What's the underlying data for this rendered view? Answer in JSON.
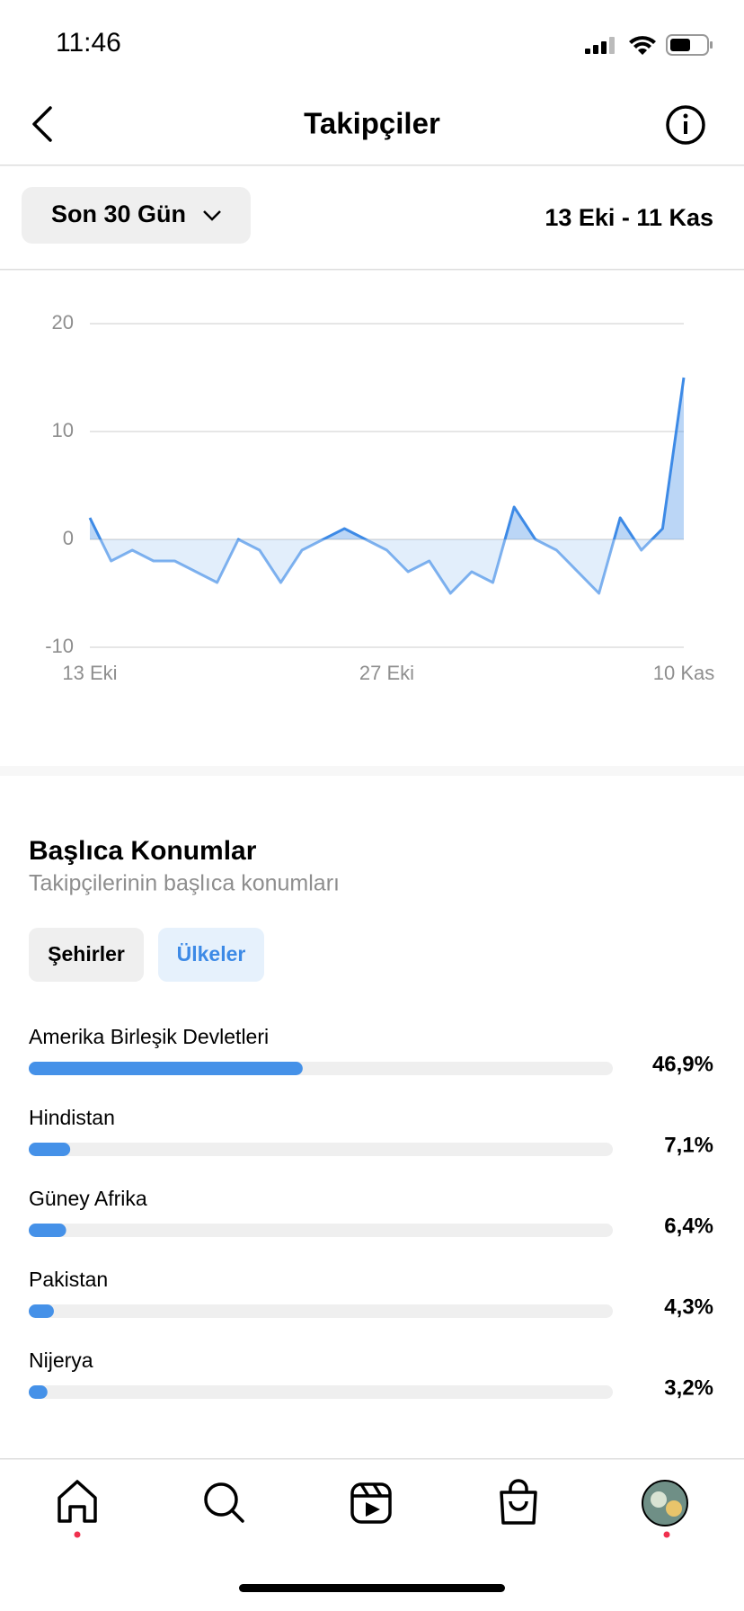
{
  "status_bar": {
    "time": "11:46"
  },
  "header": {
    "title": "Takipçiler"
  },
  "filter": {
    "period": "Son 30 Gün",
    "date_range": "13 Eki - 11 Kas"
  },
  "locations": {
    "title": "Başlıca Konumlar",
    "subtitle": "Takipçilerinin başlıca konumları",
    "tabs": [
      "Şehirler",
      "Ülkeler"
    ]
  },
  "chart_data": [
    {
      "type": "line",
      "categories": [
        "13 Eki",
        null,
        null,
        null,
        null,
        null,
        null,
        null,
        null,
        null,
        null,
        null,
        null,
        null,
        "27 Eki",
        null,
        null,
        null,
        null,
        null,
        null,
        null,
        null,
        null,
        null,
        null,
        null,
        null,
        "10 Kas"
      ],
      "values": [
        2,
        -2,
        -1,
        -2,
        -2,
        -3,
        -4,
        0,
        -1,
        -4,
        -1,
        0,
        1,
        0,
        -1,
        -3,
        -2,
        -5,
        -3,
        -4,
        3,
        0,
        -1,
        -3,
        -5,
        2,
        -1,
        1,
        15
      ],
      "color": "#3d8ae6",
      "ylim": [
        -10,
        20
      ],
      "yticks": [
        -10,
        0,
        10,
        20
      ],
      "grid": true
    },
    {
      "type": "bar",
      "categories": [
        "Amerika Birleşik Devletleri",
        "Hindistan",
        "Güney Afrika",
        "Pakistan",
        "Nijerya"
      ],
      "values": [
        46.9,
        7.1,
        6.4,
        4.3,
        3.2
      ],
      "value_labels": [
        "46,9%",
        "7,1%",
        "6,4%",
        "4,3%",
        "3,2%"
      ],
      "color": "#4591e8",
      "xlim": [
        0,
        100
      ]
    }
  ]
}
